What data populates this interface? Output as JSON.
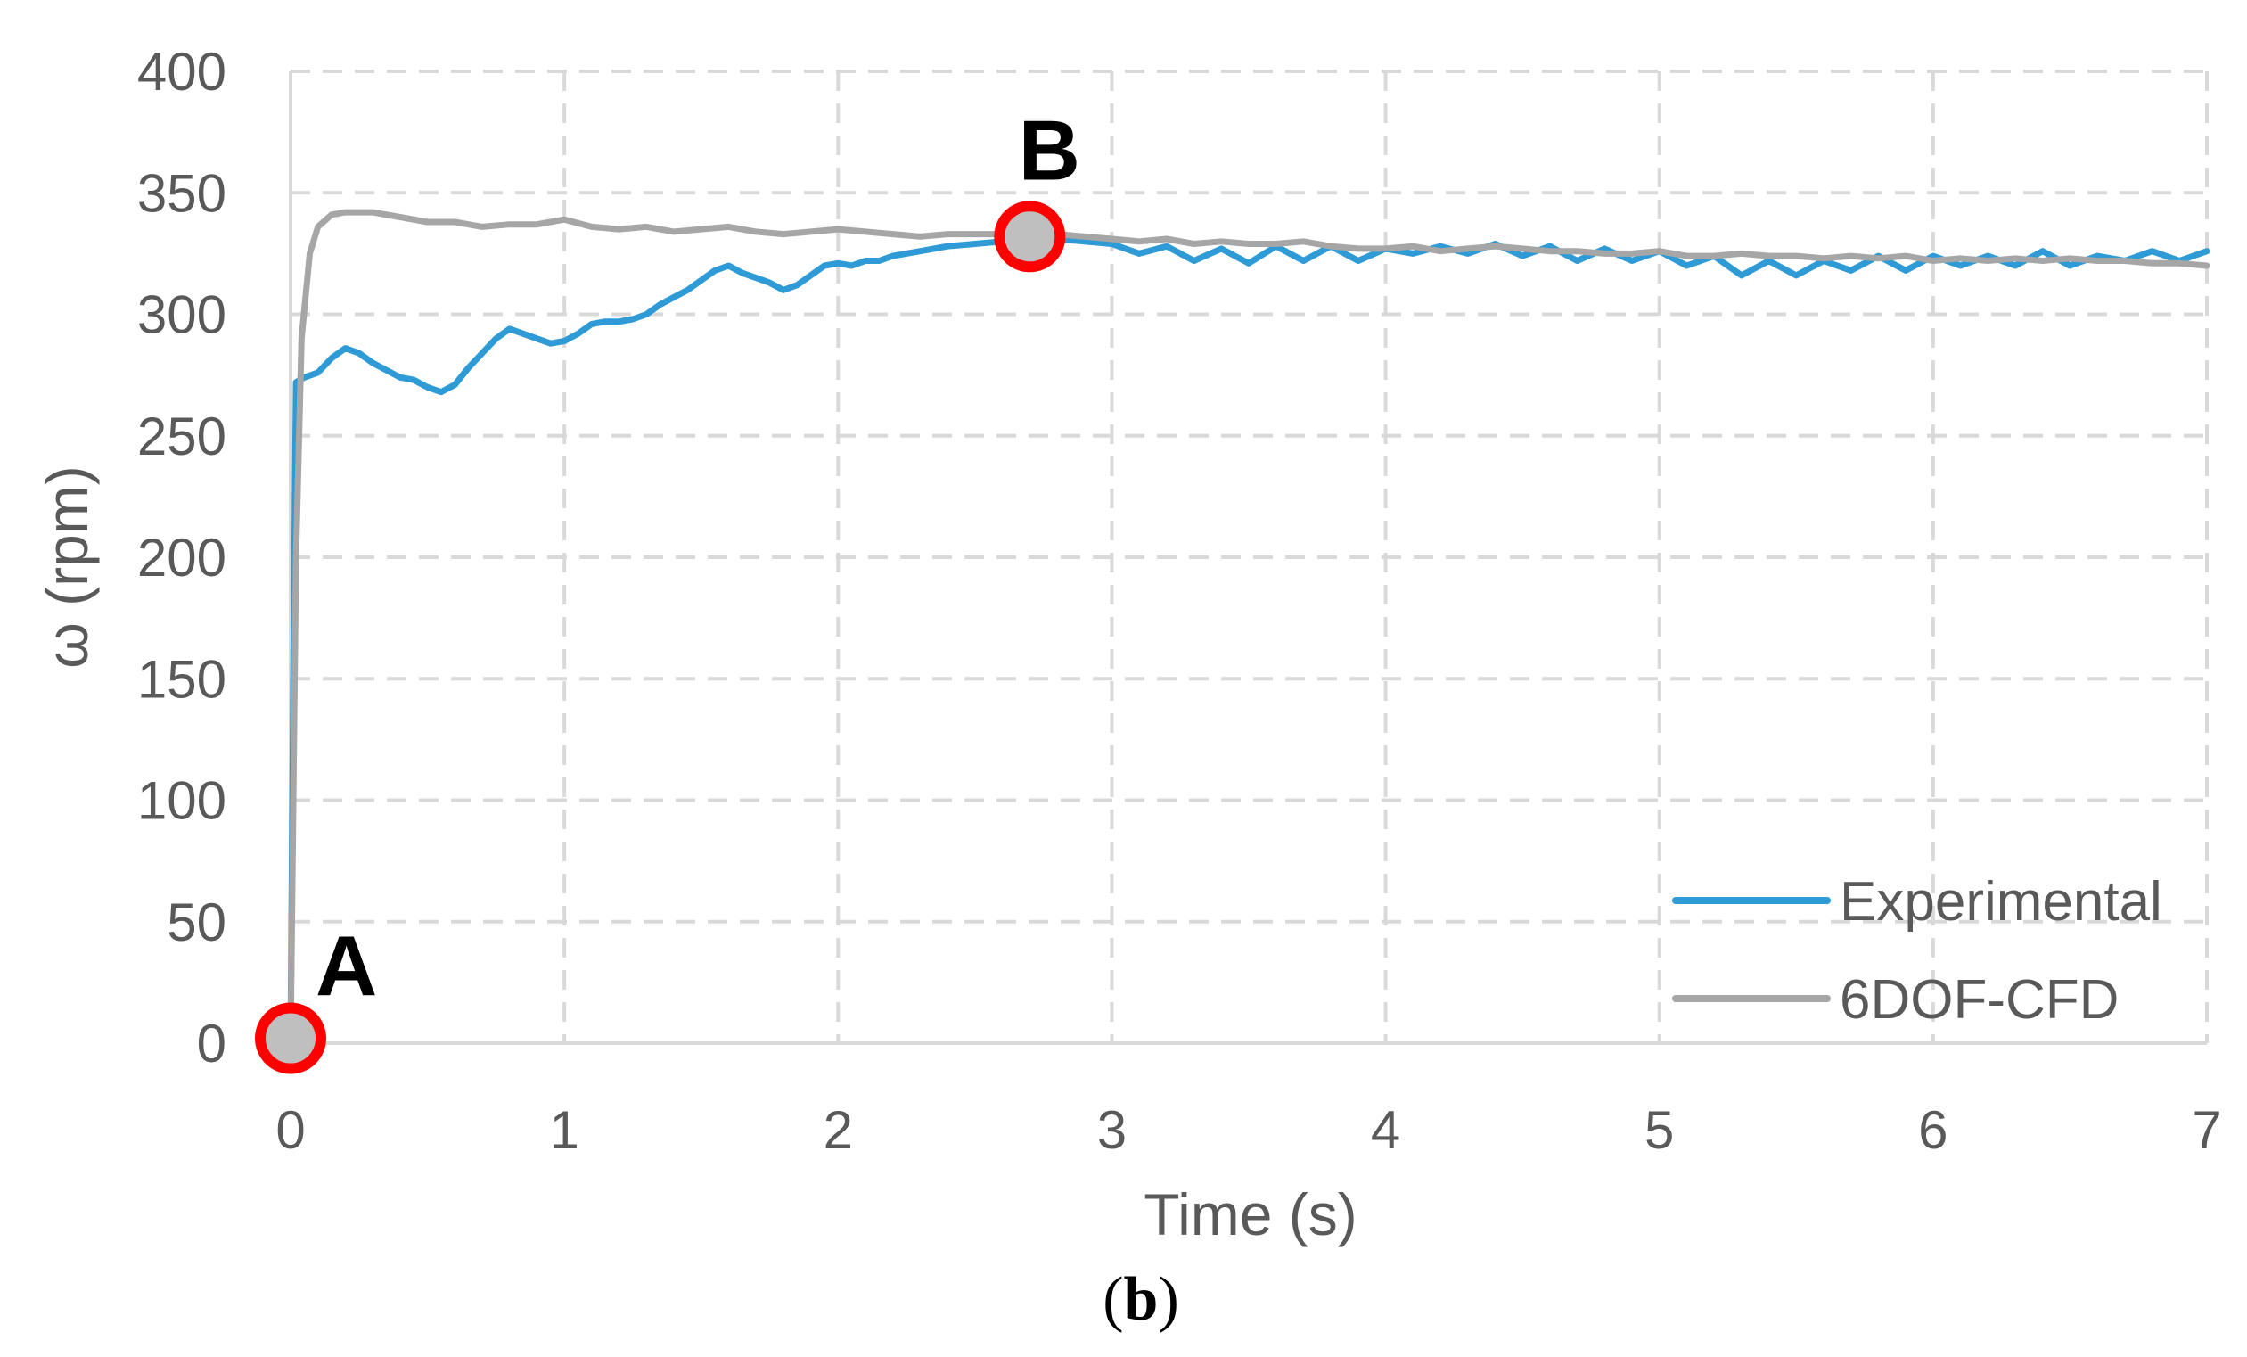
{
  "chart_data": {
    "type": "line",
    "title": "",
    "xlabel": "Time (s)",
    "ylabel": "ω (rpm)",
    "xlim": [
      0,
      7
    ],
    "ylim": [
      0,
      400
    ],
    "x_ticks": [
      0,
      1,
      2,
      3,
      4,
      5,
      6,
      7
    ],
    "y_ticks": [
      0,
      50,
      100,
      150,
      200,
      250,
      300,
      350,
      400
    ],
    "grid": "dashed",
    "legend_position": "bottom-right",
    "caption": {
      "open": "(",
      "letter": "b",
      "close": ")"
    },
    "series": [
      {
        "name": "Experimental",
        "color": "#2E9BD6",
        "points": [
          [
            0,
            0
          ],
          [
            0.01,
            150
          ],
          [
            0.02,
            272
          ],
          [
            0.05,
            274
          ],
          [
            0.1,
            276
          ],
          [
            0.15,
            282
          ],
          [
            0.2,
            286
          ],
          [
            0.25,
            284
          ],
          [
            0.3,
            280
          ],
          [
            0.35,
            277
          ],
          [
            0.4,
            274
          ],
          [
            0.45,
            273
          ],
          [
            0.5,
            270
          ],
          [
            0.55,
            268
          ],
          [
            0.6,
            271
          ],
          [
            0.65,
            278
          ],
          [
            0.7,
            284
          ],
          [
            0.75,
            290
          ],
          [
            0.8,
            294
          ],
          [
            0.85,
            292
          ],
          [
            0.9,
            290
          ],
          [
            0.95,
            288
          ],
          [
            1.0,
            289
          ],
          [
            1.05,
            292
          ],
          [
            1.1,
            296
          ],
          [
            1.15,
            297
          ],
          [
            1.2,
            297
          ],
          [
            1.25,
            298
          ],
          [
            1.3,
            300
          ],
          [
            1.35,
            304
          ],
          [
            1.4,
            307
          ],
          [
            1.45,
            310
          ],
          [
            1.5,
            314
          ],
          [
            1.55,
            318
          ],
          [
            1.6,
            320
          ],
          [
            1.65,
            317
          ],
          [
            1.7,
            315
          ],
          [
            1.75,
            313
          ],
          [
            1.8,
            310
          ],
          [
            1.85,
            312
          ],
          [
            1.9,
            316
          ],
          [
            1.95,
            320
          ],
          [
            2.0,
            321
          ],
          [
            2.05,
            320
          ],
          [
            2.1,
            322
          ],
          [
            2.15,
            322
          ],
          [
            2.2,
            324
          ],
          [
            2.3,
            326
          ],
          [
            2.4,
            328
          ],
          [
            2.5,
            329
          ],
          [
            2.6,
            330
          ],
          [
            2.7,
            331
          ],
          [
            2.8,
            331
          ],
          [
            2.9,
            330
          ],
          [
            3.0,
            329
          ],
          [
            3.1,
            325
          ],
          [
            3.2,
            328
          ],
          [
            3.3,
            322
          ],
          [
            3.4,
            327
          ],
          [
            3.5,
            321
          ],
          [
            3.6,
            328
          ],
          [
            3.7,
            322
          ],
          [
            3.8,
            328
          ],
          [
            3.9,
            322
          ],
          [
            4.0,
            327
          ],
          [
            4.1,
            325
          ],
          [
            4.2,
            328
          ],
          [
            4.3,
            325
          ],
          [
            4.4,
            329
          ],
          [
            4.5,
            324
          ],
          [
            4.6,
            328
          ],
          [
            4.7,
            322
          ],
          [
            4.8,
            327
          ],
          [
            4.9,
            322
          ],
          [
            5.0,
            326
          ],
          [
            5.1,
            320
          ],
          [
            5.2,
            324
          ],
          [
            5.3,
            316
          ],
          [
            5.4,
            322
          ],
          [
            5.5,
            316
          ],
          [
            5.6,
            322
          ],
          [
            5.7,
            318
          ],
          [
            5.8,
            324
          ],
          [
            5.9,
            318
          ],
          [
            6.0,
            324
          ],
          [
            6.1,
            320
          ],
          [
            6.2,
            324
          ],
          [
            6.3,
            320
          ],
          [
            6.4,
            326
          ],
          [
            6.5,
            320
          ],
          [
            6.6,
            324
          ],
          [
            6.7,
            322
          ],
          [
            6.8,
            326
          ],
          [
            6.9,
            322
          ],
          [
            7.0,
            326
          ]
        ]
      },
      {
        "name": "6DOF-CFD",
        "color": "#A6A6A6",
        "points": [
          [
            0,
            0
          ],
          [
            0.02,
            200
          ],
          [
            0.04,
            290
          ],
          [
            0.07,
            325
          ],
          [
            0.1,
            336
          ],
          [
            0.15,
            341
          ],
          [
            0.2,
            342
          ],
          [
            0.3,
            342
          ],
          [
            0.4,
            340
          ],
          [
            0.5,
            338
          ],
          [
            0.6,
            338
          ],
          [
            0.7,
            336
          ],
          [
            0.8,
            337
          ],
          [
            0.9,
            337
          ],
          [
            1.0,
            339
          ],
          [
            1.1,
            336
          ],
          [
            1.2,
            335
          ],
          [
            1.3,
            336
          ],
          [
            1.4,
            334
          ],
          [
            1.5,
            335
          ],
          [
            1.6,
            336
          ],
          [
            1.7,
            334
          ],
          [
            1.8,
            333
          ],
          [
            1.9,
            334
          ],
          [
            2.0,
            335
          ],
          [
            2.1,
            334
          ],
          [
            2.2,
            333
          ],
          [
            2.3,
            332
          ],
          [
            2.4,
            333
          ],
          [
            2.5,
            333
          ],
          [
            2.6,
            333
          ],
          [
            2.7,
            332
          ],
          [
            2.8,
            333
          ],
          [
            2.9,
            332
          ],
          [
            3.0,
            331
          ],
          [
            3.1,
            330
          ],
          [
            3.2,
            331
          ],
          [
            3.3,
            329
          ],
          [
            3.4,
            330
          ],
          [
            3.5,
            329
          ],
          [
            3.6,
            329
          ],
          [
            3.7,
            330
          ],
          [
            3.8,
            328
          ],
          [
            3.9,
            327
          ],
          [
            4.0,
            327
          ],
          [
            4.1,
            328
          ],
          [
            4.2,
            326
          ],
          [
            4.3,
            327
          ],
          [
            4.4,
            328
          ],
          [
            4.5,
            327
          ],
          [
            4.6,
            326
          ],
          [
            4.7,
            326
          ],
          [
            4.8,
            325
          ],
          [
            4.9,
            325
          ],
          [
            5.0,
            326
          ],
          [
            5.1,
            324
          ],
          [
            5.2,
            324
          ],
          [
            5.3,
            325
          ],
          [
            5.4,
            324
          ],
          [
            5.5,
            324
          ],
          [
            5.6,
            323
          ],
          [
            5.7,
            324
          ],
          [
            5.8,
            323
          ],
          [
            5.9,
            324
          ],
          [
            6.0,
            322
          ],
          [
            6.1,
            323
          ],
          [
            6.2,
            322
          ],
          [
            6.3,
            323
          ],
          [
            6.4,
            322
          ],
          [
            6.5,
            323
          ],
          [
            6.6,
            322
          ],
          [
            6.7,
            322
          ],
          [
            6.8,
            321
          ],
          [
            6.9,
            321
          ],
          [
            7.0,
            320
          ]
        ]
      }
    ],
    "annotations": [
      {
        "label": "A",
        "x": 0,
        "y": 2,
        "label_side": "upper-right"
      },
      {
        "label": "B",
        "x": 2.7,
        "y": 332,
        "label_side": "above"
      }
    ]
  }
}
